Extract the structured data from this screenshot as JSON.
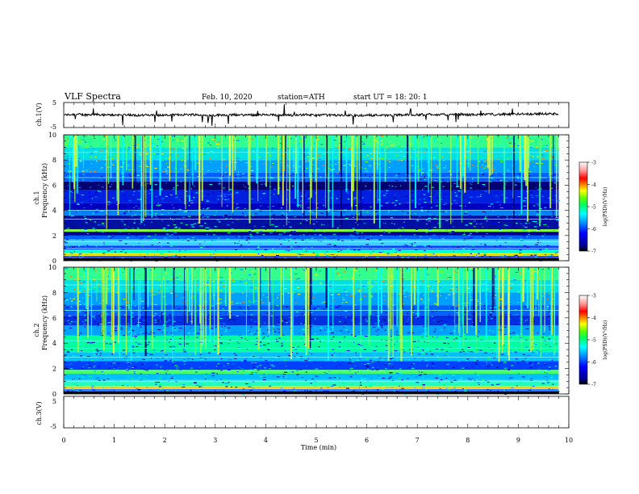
{
  "header": {
    "title": "VLF  Spectra",
    "date": "Feb. 10, 2020",
    "station": "station=ATH",
    "start": "start  UT  =    18: 20: 1"
  },
  "chart_data": [
    {
      "type": "line",
      "name": "ch1-waveform",
      "ylabel": "ch.1(V)",
      "ylim": [
        -5,
        5
      ],
      "yticks": [
        "5",
        "-5"
      ],
      "xlim": [
        0,
        10
      ],
      "baseline": 0,
      "line_color": "#000000"
    },
    {
      "type": "heatmap",
      "name": "ch1-spectrogram",
      "ylabel_line1": "ch.1",
      "ylabel_line2": "Frequency  (kHz)",
      "ylim": [
        0,
        10
      ],
      "yticks": [
        "0",
        "2",
        "4",
        "6",
        "8",
        "10"
      ],
      "xlim": [
        0,
        10
      ],
      "data_end_min": 9.8,
      "colorbar": {
        "label": "log(PSD)(V²/Hz)",
        "range": [
          -7,
          -3
        ],
        "ticks": [
          "-3",
          "-4",
          "-5",
          "-6",
          "-7"
        ]
      }
    },
    {
      "type": "heatmap",
      "name": "ch2-spectrogram",
      "ylabel_line1": "ch.2",
      "ylabel_line2": "Frequency  (kHz)",
      "ylim": [
        0,
        10
      ],
      "yticks": [
        "0",
        "2",
        "4",
        "6",
        "8",
        "10"
      ],
      "xlim": [
        0,
        10
      ],
      "data_end_min": 9.8,
      "colorbar": {
        "label": "log(PSD)(V²/Hz)",
        "range": [
          -7,
          -3
        ],
        "ticks": [
          "-3",
          "-4",
          "-5",
          "-6",
          "-7"
        ]
      }
    },
    {
      "type": "line",
      "name": "ch3-waveform",
      "ylabel": "ch.3(V)",
      "ylim": [
        -5,
        5
      ],
      "yticks": [
        "5",
        "-5"
      ],
      "xlim": [
        0,
        10
      ],
      "baseline": -2,
      "line_color": "#000000"
    }
  ],
  "xaxis": {
    "label": "Time  (min)",
    "ticks": [
      "0",
      "1",
      "2",
      "3",
      "4",
      "5",
      "6",
      "7",
      "8",
      "9",
      "10"
    ]
  },
  "colors": {
    "colormap": [
      "#000000",
      "#000080",
      "#0000ff",
      "#0080ff",
      "#00ffff",
      "#00ff80",
      "#00ff00",
      "#80ff00",
      "#ffff00",
      "#ff8000",
      "#ff0000",
      "#ff8080",
      "#ffffff"
    ]
  }
}
